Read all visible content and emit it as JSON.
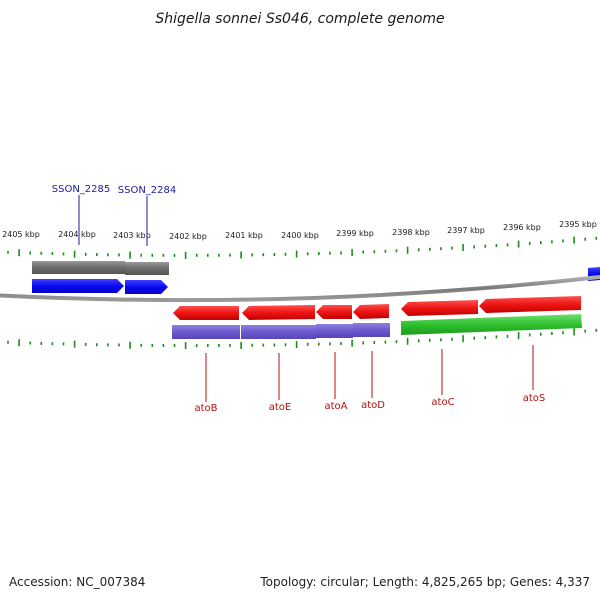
{
  "title": "Shigella sonnei Ss046, complete genome",
  "footer": {
    "accession": "Accession: NC_007384",
    "summary": "Topology: circular; Length: 4,825,265 bp; Genes: 4,337"
  },
  "colors": {
    "tick": "#1e8a1e",
    "backbone": "#8a8a8a",
    "gene_label_blue": "#1a1aa0",
    "gene_label_red": "#b01010"
  },
  "kbp_labels": [
    "2405 kbp",
    "2404 kbp",
    "2403 kbp",
    "2402 kbp",
    "2401 kbp",
    "2400 kbp",
    "2399 kbp",
    "2398 kbp",
    "2397 kbp",
    "2396 kbp",
    "2395 kbp"
  ],
  "tracks": {
    "outer_gray": {
      "color": "#6e6e6e"
    },
    "outer_blue": {
      "color": "#0a0af0"
    },
    "inner_red": {
      "color": "#ee1515"
    },
    "inner_purple": {
      "color": "#6a5acd"
    },
    "inner_green": {
      "color": "#2fc02f"
    }
  },
  "gene_labels": {
    "top": [
      "SSON_2285",
      "SSON_2284"
    ],
    "bottom": [
      "atoB",
      "atoE",
      "atoA",
      "atoD",
      "atoC",
      "atoS"
    ]
  }
}
